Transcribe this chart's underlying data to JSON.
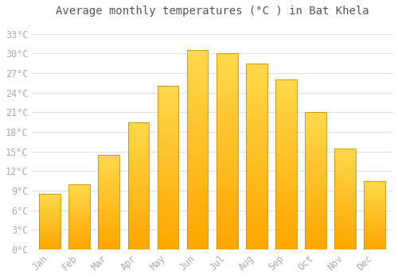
{
  "months": [
    "Jan",
    "Feb",
    "Mar",
    "Apr",
    "May",
    "Jun",
    "Jul",
    "Aug",
    "Sep",
    "Oct",
    "Nov",
    "Dec"
  ],
  "temperatures": [
    8.5,
    10.0,
    14.5,
    19.5,
    25.0,
    30.5,
    30.0,
    28.5,
    26.0,
    21.0,
    15.5,
    10.5
  ],
  "bar_color_bottom": "#FFA500",
  "bar_color_top": "#FFD44F",
  "bar_edge_color": "#C8900A",
  "title": "Average monthly temperatures (°C ) in Bat Khela",
  "title_fontsize": 10,
  "ytick_labels": [
    "0°C",
    "3°C",
    "6°C",
    "9°C",
    "12°C",
    "15°C",
    "18°C",
    "21°C",
    "24°C",
    "27°C",
    "30°C",
    "33°C"
  ],
  "ytick_values": [
    0,
    3,
    6,
    9,
    12,
    15,
    18,
    21,
    24,
    27,
    30,
    33
  ],
  "ylim": [
    0,
    35
  ],
  "background_color": "#ffffff",
  "plot_bg_color": "#ffffff",
  "grid_color": "#e0e0e0",
  "tick_label_color": "#aaaaaa",
  "tick_fontsize": 8.5,
  "title_color": "#555555"
}
